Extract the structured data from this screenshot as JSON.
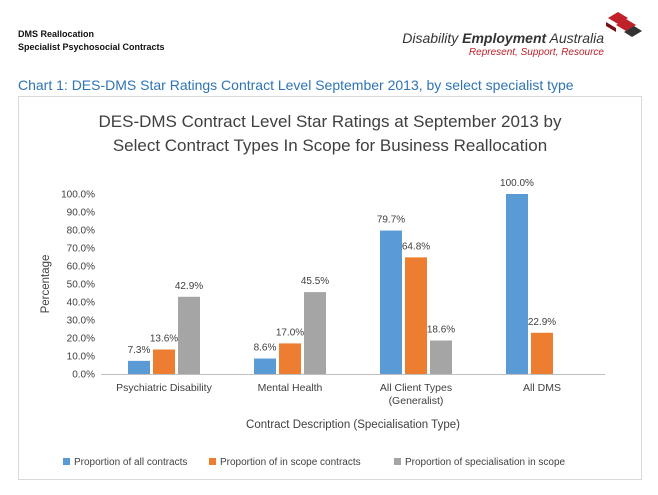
{
  "header": {
    "line1": "DMS Reallocation",
    "line2": "Specialist Psychosocial Contracts"
  },
  "logo": {
    "name_regular": "Disability ",
    "name_bold": "Employment",
    "name_end": " Australia",
    "tagline": "Represent, Support, Resource",
    "colors": {
      "red": "#c0202a",
      "dark": "#333333"
    },
    "icon": "chevron-stack-logo"
  },
  "caption": "Chart 1: DES-DMS Star Ratings Contract Level September 2013, by select specialist type",
  "chart_data": {
    "type": "bar",
    "title": [
      "DES-DMS Contract Level Star Ratings at September 2013 by",
      "Select Contract Types In Scope for Business Reallocation"
    ],
    "xlabel": "Contract Description (Specialisation Type)",
    "ylabel": "Percentage",
    "ylim": [
      0,
      100
    ],
    "yticks": [
      0,
      10,
      20,
      30,
      40,
      50,
      60,
      70,
      80,
      90,
      100
    ],
    "ytick_labels": [
      "0.0%",
      "10.0%",
      "20.0%",
      "30.0%",
      "40.0%",
      "50.0%",
      "60.0%",
      "70.0%",
      "80.0%",
      "90.0%",
      "100.0%"
    ],
    "categories": [
      [
        "Psychiatric Disability"
      ],
      [
        "Mental Health"
      ],
      [
        "All Client Types",
        "(Generalist)"
      ],
      [
        "All DMS"
      ]
    ],
    "series": [
      {
        "name": "Proportion of all contracts",
        "color": "#5b9bd5",
        "values": [
          7.3,
          8.6,
          79.7,
          100.0
        ],
        "labels": [
          "7.3%",
          "8.6%",
          "79.7%",
          "100.0%"
        ]
      },
      {
        "name": "Proportion of in scope contracts",
        "color": "#ed7d31",
        "values": [
          13.6,
          17.0,
          64.8,
          22.9
        ],
        "labels": [
          "13.6%",
          "17.0%",
          "64.8%",
          "22.9%"
        ]
      },
      {
        "name": "Proportion of specialisation in scope",
        "color": "#a5a5a5",
        "values": [
          42.9,
          45.5,
          18.6,
          null
        ],
        "labels": [
          "42.9%",
          "45.5%",
          "18.6%",
          ""
        ]
      }
    ],
    "legend_position": "bottom",
    "grid": false
  }
}
